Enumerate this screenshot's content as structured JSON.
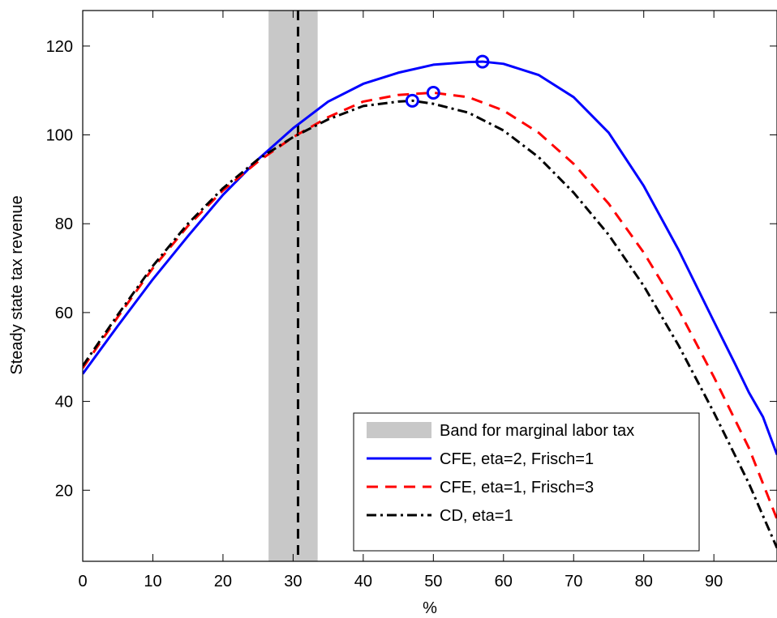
{
  "chart_data": {
    "type": "line",
    "title": "",
    "xlabel": "%",
    "ylabel": "Steady state tax revenue",
    "xlim": [
      0,
      99
    ],
    "ylim": [
      4,
      128
    ],
    "xticks": [
      0,
      10,
      20,
      30,
      40,
      50,
      60,
      70,
      80,
      90
    ],
    "yticks": [
      20,
      40,
      60,
      80,
      100,
      120
    ],
    "grid": false,
    "legend_position": "bottom-right",
    "band": {
      "label": "Band for marginal labor tax",
      "x_range": [
        26.5,
        33.5
      ],
      "color": "#c8c8c8"
    },
    "vline": {
      "x": 30.7,
      "color": "#000000",
      "style": "dashed"
    },
    "series": [
      {
        "name": "CFE, eta=2, Frisch=1",
        "color": "#0000ff",
        "style": "solid",
        "x": [
          0,
          5,
          10,
          15,
          20,
          25,
          30,
          35,
          40,
          45,
          50,
          55,
          57,
          60,
          65,
          70,
          75,
          80,
          85,
          90,
          93,
          95,
          97,
          99
        ],
        "y": [
          46.2,
          57.0,
          67.5,
          77.2,
          86.5,
          94.5,
          101.5,
          107.5,
          111.5,
          114.0,
          115.8,
          116.4,
          116.5,
          116.0,
          113.5,
          108.5,
          100.5,
          88.5,
          74.0,
          58.0,
          48.5,
          42.0,
          36.5,
          28.0
        ],
        "markers": [
          {
            "x": 57,
            "y": 116.5
          }
        ]
      },
      {
        "name": "CFE, eta=1, Frisch=3",
        "color": "#ff0000",
        "style": "dashed",
        "x": [
          0,
          5,
          10,
          15,
          20,
          25,
          30,
          35,
          40,
          45,
          50,
          55,
          60,
          65,
          70,
          75,
          80,
          85,
          90,
          95,
          99
        ],
        "y": [
          47.5,
          59.0,
          70.0,
          79.5,
          87.5,
          94.0,
          99.5,
          104.0,
          107.5,
          109.0,
          109.5,
          108.5,
          105.5,
          100.5,
          93.5,
          84.5,
          73.5,
          60.5,
          45.5,
          29.5,
          13.5
        ],
        "markers": [
          {
            "x": 50,
            "y": 109.5
          }
        ]
      },
      {
        "name": "CD, eta=1",
        "color": "#000000",
        "style": "dashdot",
        "x": [
          0,
          5,
          10,
          15,
          20,
          25,
          30,
          35,
          40,
          45,
          47,
          50,
          55,
          60,
          65,
          70,
          75,
          80,
          85,
          90,
          95,
          99
        ],
        "y": [
          48.0,
          59.5,
          70.5,
          80.0,
          88.0,
          94.5,
          99.5,
          103.5,
          106.5,
          107.5,
          107.7,
          107.0,
          105.0,
          101.0,
          95.0,
          87.0,
          77.5,
          66.0,
          52.5,
          37.5,
          21.5,
          7.0
        ],
        "markers": [
          {
            "x": 47,
            "y": 107.7
          }
        ]
      }
    ]
  }
}
